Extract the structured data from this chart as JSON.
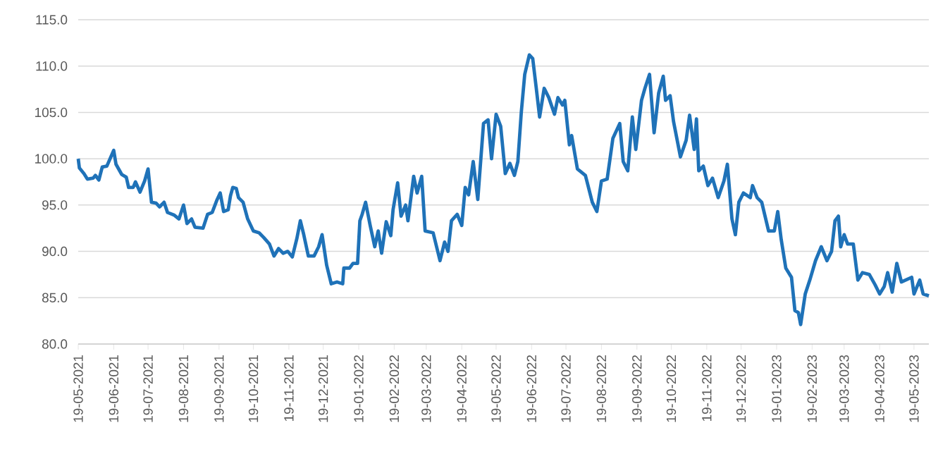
{
  "chart_data": {
    "type": "line",
    "x": [
      "2021-05-19",
      "2021-05-20",
      "2021-05-24",
      "2021-05-27",
      "2021-06-01",
      "2021-06-03",
      "2021-06-06",
      "2021-06-09",
      "2021-06-13",
      "2021-06-19",
      "2021-06-21",
      "2021-06-26",
      "2021-06-30",
      "2021-07-02",
      "2021-07-06",
      "2021-07-08",
      "2021-07-12",
      "2021-07-16",
      "2021-07-19",
      "2021-07-22",
      "2021-07-26",
      "2021-07-29",
      "2021-08-02",
      "2021-08-05",
      "2021-08-11",
      "2021-08-15",
      "2021-08-19",
      "2021-08-22",
      "2021-08-26",
      "2021-08-29",
      "2021-09-05",
      "2021-09-09",
      "2021-09-13",
      "2021-09-17",
      "2021-09-20",
      "2021-09-23",
      "2021-09-27",
      "2021-09-29",
      "2021-10-01",
      "2021-10-04",
      "2021-10-06",
      "2021-10-10",
      "2021-10-14",
      "2021-10-19",
      "2021-10-24",
      "2021-10-28",
      "2021-11-02",
      "2021-11-06",
      "2021-11-10",
      "2021-11-14",
      "2021-11-18",
      "2021-11-22",
      "2021-11-26",
      "2021-11-29",
      "2021-12-02",
      "2021-12-06",
      "2021-12-11",
      "2021-12-15",
      "2021-12-18",
      "2021-12-22",
      "2021-12-26",
      "2021-12-31",
      "2022-01-05",
      "2022-01-06",
      "2022-01-11",
      "2022-01-14",
      "2022-01-18",
      "2022-01-20",
      "2022-01-22",
      "2022-01-25",
      "2022-01-29",
      "2022-02-02",
      "2022-02-05",
      "2022-02-08",
      "2022-02-12",
      "2022-02-16",
      "2022-02-18",
      "2022-02-22",
      "2022-02-25",
      "2022-03-01",
      "2022-03-03",
      "2022-03-08",
      "2022-03-11",
      "2022-03-15",
      "2022-03-18",
      "2022-03-25",
      "2022-03-31",
      "2022-04-04",
      "2022-04-07",
      "2022-04-10",
      "2022-04-15",
      "2022-04-19",
      "2022-04-22",
      "2022-04-25",
      "2022-04-29",
      "2022-05-03",
      "2022-05-08",
      "2022-05-12",
      "2022-05-15",
      "2022-05-19",
      "2022-05-23",
      "2022-05-27",
      "2022-05-31",
      "2022-06-04",
      "2022-06-07",
      "2022-06-10",
      "2022-06-13",
      "2022-06-17",
      "2022-06-20",
      "2022-06-23",
      "2022-06-26",
      "2022-06-30",
      "2022-07-04",
      "2022-07-09",
      "2022-07-12",
      "2022-07-16",
      "2022-07-18",
      "2022-07-22",
      "2022-07-24",
      "2022-07-29",
      "2022-08-05",
      "2022-08-11",
      "2022-08-15",
      "2022-08-19",
      "2022-08-24",
      "2022-08-29",
      "2022-09-04",
      "2022-09-07",
      "2022-09-11",
      "2022-09-15",
      "2022-09-18",
      "2022-09-23",
      "2022-09-26",
      "2022-09-30",
      "2022-10-04",
      "2022-10-08",
      "2022-10-12",
      "2022-10-14",
      "2022-10-18",
      "2022-10-21",
      "2022-10-27",
      "2022-11-01",
      "2022-11-04",
      "2022-11-08",
      "2022-11-10",
      "2022-11-12",
      "2022-11-16",
      "2022-11-20",
      "2022-11-24",
      "2022-11-29",
      "2022-12-04",
      "2022-12-07",
      "2022-12-11",
      "2022-12-14",
      "2022-12-17",
      "2022-12-21",
      "2022-12-27",
      "2022-12-29",
      "2023-01-02",
      "2023-01-06",
      "2023-01-12",
      "2023-01-17",
      "2023-01-20",
      "2023-01-23",
      "2023-01-27",
      "2023-02-01",
      "2023-02-04",
      "2023-02-07",
      "2023-02-09",
      "2023-02-13",
      "2023-02-17",
      "2023-02-22",
      "2023-02-27",
      "2023-03-04",
      "2023-03-08",
      "2023-03-11",
      "2023-03-14",
      "2023-03-16",
      "2023-03-19",
      "2023-03-22",
      "2023-03-27",
      "2023-03-31",
      "2023-04-04",
      "2023-04-10",
      "2023-04-15",
      "2023-04-19",
      "2023-04-23",
      "2023-04-26",
      "2023-04-30",
      "2023-05-04",
      "2023-05-08",
      "2023-05-17",
      "2023-05-19",
      "2023-05-24",
      "2023-05-27",
      "2023-06-01"
    ],
    "series": [
      {
        "color": "#1f72b8",
        "values": [
          100.0,
          99.0,
          98.4,
          97.8,
          97.9,
          98.2,
          97.7,
          99.1,
          99.2,
          100.9,
          99.4,
          98.3,
          98.0,
          96.9,
          96.9,
          97.5,
          96.4,
          97.6,
          98.9,
          95.3,
          95.2,
          94.8,
          95.3,
          94.2,
          93.9,
          93.5,
          95.0,
          93.0,
          93.5,
          92.6,
          92.5,
          94.0,
          94.2,
          95.5,
          96.3,
          94.3,
          94.5,
          96.0,
          96.9,
          96.8,
          95.8,
          95.3,
          93.5,
          92.2,
          92.0,
          91.5,
          90.8,
          89.5,
          90.3,
          89.8,
          90.0,
          89.4,
          91.4,
          93.3,
          91.8,
          89.5,
          89.5,
          90.5,
          91.8,
          88.5,
          86.5,
          86.7,
          86.5,
          88.2,
          88.2,
          88.7,
          88.7,
          93.3,
          94.0,
          95.3,
          92.8,
          90.5,
          92.2,
          89.8,
          93.2,
          91.7,
          94.5,
          97.4,
          93.8,
          95.0,
          93.3,
          98.1,
          96.3,
          98.1,
          92.2,
          92.0,
          89.0,
          91.0,
          90.0,
          93.3,
          94.0,
          92.8,
          96.9,
          96.1,
          99.7,
          95.6,
          103.8,
          104.2,
          100.0,
          104.8,
          103.5,
          98.4,
          99.5,
          98.2,
          99.7,
          105.0,
          109.1,
          111.2,
          110.8,
          107.7,
          104.5,
          107.6,
          106.6,
          104.8,
          106.6,
          105.8,
          106.3,
          101.5,
          102.5,
          98.9,
          98.2,
          95.3,
          94.3,
          97.6,
          97.8,
          102.2,
          103.8,
          99.7,
          98.7,
          104.5,
          101.0,
          106.3,
          107.6,
          109.1,
          102.8,
          107.1,
          108.9,
          106.3,
          106.8,
          104.0,
          100.2,
          102.0,
          104.7,
          101.0,
          104.3,
          98.7,
          99.2,
          97.1,
          97.9,
          95.8,
          97.6,
          99.4,
          93.5,
          91.8,
          95.3,
          96.3,
          95.8,
          97.1,
          95.8,
          95.3,
          92.2,
          92.2,
          94.3,
          91.3,
          88.2,
          87.2,
          83.6,
          83.4,
          82.1,
          85.4,
          86.9,
          89.0,
          90.5,
          89.0,
          90.0,
          93.3,
          93.8,
          90.5,
          91.8,
          90.8,
          90.8,
          86.9,
          87.7,
          87.5,
          86.4,
          85.4,
          86.2,
          87.7,
          85.6,
          88.7,
          86.7,
          87.2,
          85.4,
          86.9,
          85.4,
          85.2
        ]
      }
    ],
    "xlim": [
      "2021-05-19",
      "2023-06-01"
    ],
    "xticks": [
      {
        "value": "2021-05-19",
        "label": "19-05-2021"
      },
      {
        "value": "2021-06-19",
        "label": "19-06-2021"
      },
      {
        "value": "2021-07-19",
        "label": "19-07-2021"
      },
      {
        "value": "2021-08-19",
        "label": "19-08-2021"
      },
      {
        "value": "2021-09-19",
        "label": "19-09-2021"
      },
      {
        "value": "2021-10-19",
        "label": "19-10-2021"
      },
      {
        "value": "2021-11-19",
        "label": "19-11-2021"
      },
      {
        "value": "2021-12-19",
        "label": "19-12-2021"
      },
      {
        "value": "2022-01-19",
        "label": "19-01-2022"
      },
      {
        "value": "2022-02-19",
        "label": "19-02-2022"
      },
      {
        "value": "2022-03-19",
        "label": "19-03-2022"
      },
      {
        "value": "2022-04-19",
        "label": "19-04-2022"
      },
      {
        "value": "2022-05-19",
        "label": "19-05-2022"
      },
      {
        "value": "2022-06-19",
        "label": "19-06-2022"
      },
      {
        "value": "2022-07-19",
        "label": "19-07-2022"
      },
      {
        "value": "2022-08-19",
        "label": "19-08-2022"
      },
      {
        "value": "2022-09-19",
        "label": "19-09-2022"
      },
      {
        "value": "2022-10-19",
        "label": "19-10-2022"
      },
      {
        "value": "2022-11-19",
        "label": "19-11-2022"
      },
      {
        "value": "2022-12-19",
        "label": "19-12-2022"
      },
      {
        "value": "2023-01-19",
        "label": "19-01-2023"
      },
      {
        "value": "2023-02-19",
        "label": "19-02-2023"
      },
      {
        "value": "2023-03-19",
        "label": "19-03-2023"
      },
      {
        "value": "2023-04-19",
        "label": "19-04-2023"
      },
      {
        "value": "2023-05-19",
        "label": "19-05-2023"
      }
    ],
    "ylim": [
      80,
      115
    ],
    "yticks": [
      {
        "value": 80,
        "label": "80.0"
      },
      {
        "value": 85,
        "label": "85.0"
      },
      {
        "value": 90,
        "label": "90.0"
      },
      {
        "value": 95,
        "label": "95.0"
      },
      {
        "value": 100,
        "label": "100.0"
      },
      {
        "value": 105,
        "label": "105.0"
      },
      {
        "value": 110,
        "label": "110.0"
      },
      {
        "value": 115,
        "label": "115.0"
      }
    ],
    "grid": "y",
    "legend": false,
    "marker": "none",
    "line_style": "solid"
  }
}
